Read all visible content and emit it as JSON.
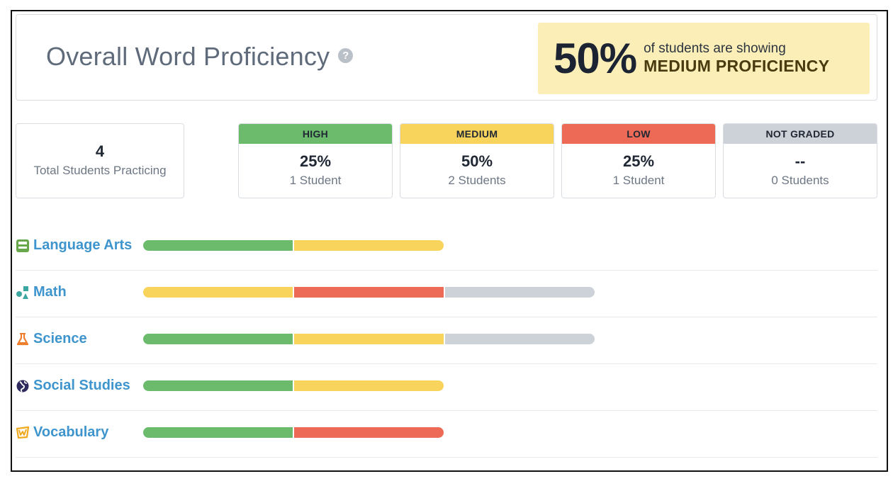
{
  "header": {
    "title": "Overall Word Proficiency",
    "help_icon": "question-circle-icon",
    "summary": {
      "percent": "50%",
      "line1": "of students are showing",
      "line2": "MEDIUM PROFICIENCY"
    }
  },
  "totals": {
    "count": "4",
    "label": "Total Students Practicing"
  },
  "levels": [
    {
      "label": "HIGH",
      "percent": "25%",
      "students": "1 Student",
      "color": "#6cbb6d"
    },
    {
      "label": "MEDIUM",
      "percent": "50%",
      "students": "2 Students",
      "color": "#f8d45c"
    },
    {
      "label": "LOW",
      "percent": "25%",
      "students": "1 Student",
      "color": "#ed6b56"
    },
    {
      "label": "NOT GRADED",
      "percent": "--",
      "students": "0 Students",
      "color": "#cdd1d8"
    }
  ],
  "subjects": [
    {
      "name": "Language Arts",
      "icon": "book-icon",
      "icon_color": "#67a94a",
      "segments": [
        "high",
        "medium"
      ]
    },
    {
      "name": "Math",
      "icon": "shapes-icon",
      "icon_color": "#3aa7a0",
      "segments": [
        "medium",
        "low",
        "not_graded"
      ]
    },
    {
      "name": "Science",
      "icon": "flask-icon",
      "icon_color": "#ee7d2d",
      "segments": [
        "high",
        "medium",
        "not_graded"
      ]
    },
    {
      "name": "Social Studies",
      "icon": "globe-icon",
      "icon_color": "#2e2a5e",
      "segments": [
        "high",
        "medium"
      ]
    },
    {
      "name": "Vocabulary",
      "icon": "w-badge-icon",
      "icon_color": "#f2a91e",
      "segments": [
        "high",
        "low"
      ]
    }
  ],
  "segment_colors": {
    "high": "#6cbb6d",
    "medium": "#f8d45c",
    "low": "#ed6b56",
    "not_graded": "#cdd1d8"
  }
}
